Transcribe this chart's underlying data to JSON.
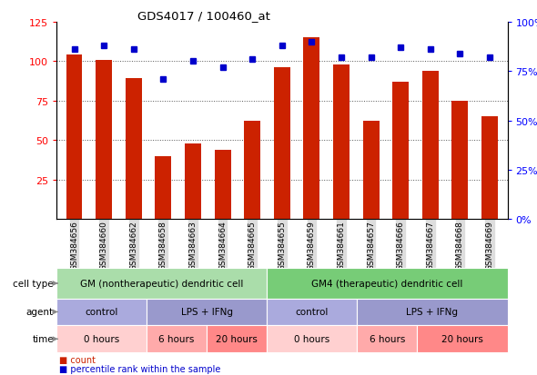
{
  "title": "GDS4017 / 100460_at",
  "samples": [
    "GSM384656",
    "GSM384660",
    "GSM384662",
    "GSM384658",
    "GSM384663",
    "GSM384664",
    "GSM384665",
    "GSM384655",
    "GSM384659",
    "GSM384661",
    "GSM384657",
    "GSM384666",
    "GSM384667",
    "GSM384668",
    "GSM384669"
  ],
  "bar_values": [
    104,
    101,
    89,
    40,
    48,
    44,
    62,
    96,
    115,
    98,
    62,
    87,
    94,
    75,
    65
  ],
  "dot_values_pct": [
    86,
    88,
    86,
    71,
    80,
    77,
    81,
    88,
    90,
    82,
    82,
    87,
    86,
    84,
    82
  ],
  "bar_color": "#cc2200",
  "dot_color": "#0000cc",
  "ylim_left": [
    0,
    125
  ],
  "ylim_right": [
    0,
    100
  ],
  "yticks_left": [
    25,
    50,
    75,
    100,
    125
  ],
  "ytick_labels_left": [
    "25",
    "50",
    "75",
    "100",
    "125"
  ],
  "yticks_right": [
    0,
    25,
    50,
    75,
    100
  ],
  "ytick_labels_right": [
    "0%",
    "25%",
    "50%",
    "75%",
    "100%"
  ],
  "grid_values": [
    25,
    50,
    75,
    100
  ],
  "cell_type_groups": [
    {
      "label": "GM (nontherapeutic) dendritic cell",
      "start": 0,
      "end": 7,
      "color": "#aaddaa"
    },
    {
      "label": "GM4 (therapeutic) dendritic cell",
      "start": 7,
      "end": 15,
      "color": "#77cc77"
    }
  ],
  "agent_groups": [
    {
      "label": "control",
      "start": 0,
      "end": 3,
      "color": "#aaaadd"
    },
    {
      "label": "LPS + IFNg",
      "start": 3,
      "end": 7,
      "color": "#9999cc"
    },
    {
      "label": "control",
      "start": 7,
      "end": 10,
      "color": "#aaaadd"
    },
    {
      "label": "LPS + IFNg",
      "start": 10,
      "end": 15,
      "color": "#9999cc"
    }
  ],
  "time_groups": [
    {
      "label": "0 hours",
      "start": 0,
      "end": 3,
      "color": "#ffd0d0"
    },
    {
      "label": "6 hours",
      "start": 3,
      "end": 5,
      "color": "#ffaaaa"
    },
    {
      "label": "20 hours",
      "start": 5,
      "end": 7,
      "color": "#ff8888"
    },
    {
      "label": "0 hours",
      "start": 7,
      "end": 10,
      "color": "#ffd0d0"
    },
    {
      "label": "6 hours",
      "start": 10,
      "end": 12,
      "color": "#ffaaaa"
    },
    {
      "label": "20 hours",
      "start": 12,
      "end": 15,
      "color": "#ff8888"
    }
  ],
  "row_labels": [
    "cell type",
    "agent",
    "time"
  ],
  "legend_count_color": "#cc2200",
  "legend_pct_color": "#0000cc",
  "background_color": "#ffffff",
  "tick_bg_color": "#dddddd"
}
